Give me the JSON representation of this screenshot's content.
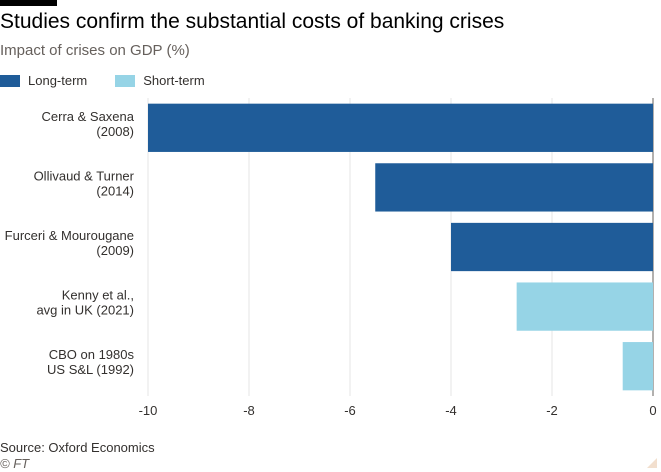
{
  "title": "Studies confirm the substantial costs of banking crises",
  "subtitle": "Impact of crises on GDP (%)",
  "legend": [
    {
      "label": "Long-term",
      "color": "#1f5c99"
    },
    {
      "label": "Short-term",
      "color": "#96d4e6"
    }
  ],
  "source": "Source: Oxford Economics",
  "credit": "© FT",
  "chart_data": {
    "type": "bar",
    "orientation": "horizontal",
    "categories": [
      [
        "Cerra & Saxena",
        "(2008)"
      ],
      [
        "Ollivaud & Turner",
        "(2014)"
      ],
      [
        "Furceri & Mourougane",
        "(2009)"
      ],
      [
        "Kenny et al.,",
        "avg in UK (2021)"
      ],
      [
        "CBO on 1980s",
        "US S&L (1992)"
      ]
    ],
    "values": [
      -10,
      -5.5,
      -4,
      -2.7,
      -0.6
    ],
    "groups": [
      "Long-term",
      "Long-term",
      "Long-term",
      "Short-term",
      "Short-term"
    ],
    "title": "Studies confirm the substantial costs of banking crises",
    "subtitle": "Impact of crises on GDP (%)",
    "xlim": [
      -10,
      0
    ],
    "xticks": [
      -10,
      -8,
      -6,
      -4,
      -2,
      0
    ],
    "grid": true,
    "legend_position": "top-left"
  }
}
